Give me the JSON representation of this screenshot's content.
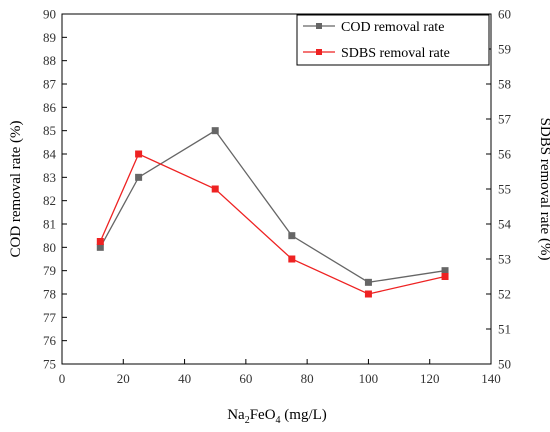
{
  "chart_data": {
    "type": "line",
    "x": [
      12.5,
      25,
      50,
      75,
      100,
      125
    ],
    "xlabel_parts": [
      "Na",
      "2",
      "FeO",
      "4",
      " (mg/L)"
    ],
    "xlim": [
      0,
      140
    ],
    "xticks": [
      0,
      20,
      40,
      60,
      80,
      100,
      120,
      140
    ],
    "ylabel_left": "COD removal rate (%)",
    "ylim_left": [
      75,
      90
    ],
    "yticks_left": [
      75,
      76,
      77,
      78,
      79,
      80,
      81,
      82,
      83,
      84,
      85,
      86,
      87,
      88,
      89,
      90
    ],
    "ylabel_right": "SDBS removal rate (%)",
    "ylim_right": [
      50,
      60
    ],
    "yticks_right": [
      50,
      51,
      52,
      53,
      54,
      55,
      56,
      57,
      58,
      59,
      60
    ],
    "grid": false,
    "legend_position": "top-right",
    "series": [
      {
        "name": "COD removal rate",
        "axis": "left",
        "color": "#666666",
        "values": [
          80.0,
          83.0,
          85.0,
          80.5,
          78.5,
          79.0
        ]
      },
      {
        "name": "SDBS removal rate",
        "axis": "right",
        "color": "#ee2222",
        "values": [
          53.5,
          56.0,
          55.0,
          53.0,
          52.0,
          52.5
        ]
      }
    ]
  }
}
